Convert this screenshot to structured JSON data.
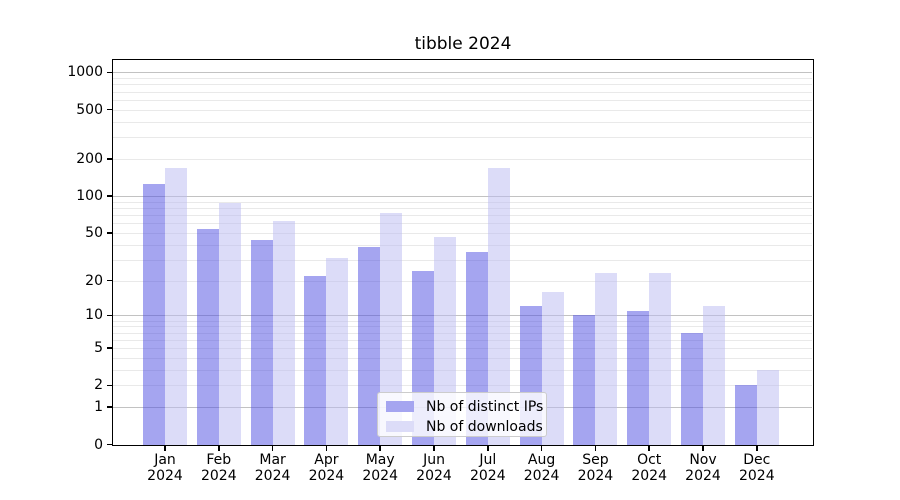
{
  "title": "tibble 2024",
  "chart_data": {
    "type": "bar",
    "title": "tibble 2024",
    "categories": [
      "Jan 2024",
      "Feb 2024",
      "Mar 2024",
      "Apr 2024",
      "May 2024",
      "Jun 2024",
      "Jul 2024",
      "Aug 2024",
      "Sep 2024",
      "Oct 2024",
      "Nov 2024",
      "Dec 2024"
    ],
    "series": [
      {
        "name": "Nb of distinct IPs",
        "values": [
          124,
          54,
          44,
          22,
          38,
          24,
          35,
          12,
          10,
          11,
          7,
          2
        ]
      },
      {
        "name": "Nb of downloads",
        "values": [
          170,
          87,
          62,
          31,
          72,
          46,
          168,
          16,
          23,
          23,
          12,
          3
        ]
      }
    ],
    "xlabel": "",
    "ylabel": "",
    "yscale": "log1p",
    "ylim": [
      0,
      1250
    ],
    "yticks": [
      0,
      1,
      2,
      5,
      10,
      20,
      50,
      100,
      200,
      500,
      1000
    ],
    "grid": true,
    "legend_position": "lower center"
  },
  "y_axis": {
    "tick_labels": [
      "0",
      "1",
      "2",
      "5",
      "10",
      "20",
      "50",
      "100",
      "200",
      "500",
      "1000"
    ],
    "tick_values": [
      0,
      1,
      2,
      5,
      10,
      20,
      50,
      100,
      200,
      500,
      1000
    ],
    "major_gridlines": [
      1,
      10,
      100,
      1000
    ],
    "minor_gridlines": [
      2,
      3,
      4,
      5,
      6,
      7,
      8,
      9,
      20,
      30,
      40,
      50,
      60,
      70,
      80,
      90,
      200,
      300,
      400,
      500,
      600,
      700,
      800,
      900
    ]
  },
  "legend": {
    "items": [
      {
        "label": "Nb of distinct IPs",
        "swatch_color": "#a5a5f0"
      },
      {
        "label": "Nb of downloads",
        "swatch_color": "#dcdcf8"
      }
    ]
  },
  "colors": {
    "bar_distinct_ips": "rgba(76,76,226,0.5)",
    "bar_downloads": "rgba(185,185,242,0.5)",
    "grid_major": "#c2c2c2",
    "grid_minor": "#e9e9e9",
    "spine": "#000000",
    "text": "#000000",
    "legend_border": "#cccccc",
    "legend_bg": "rgba(255,255,255,0.8)"
  }
}
